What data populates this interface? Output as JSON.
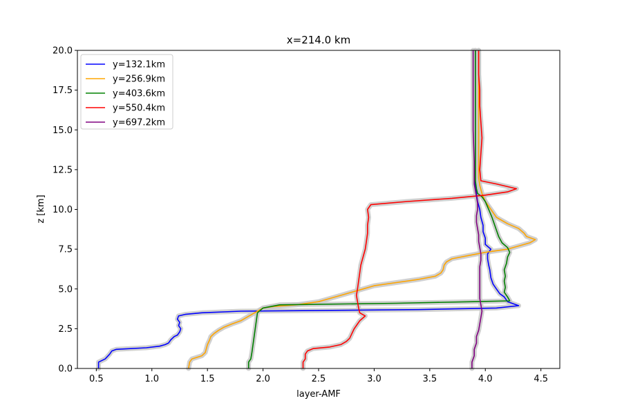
{
  "chart_data": {
    "type": "line",
    "title": "x=214.0 km",
    "xlabel": "layer-AMF",
    "ylabel": "z [km]",
    "xlim": [
      0.33,
      4.67
    ],
    "ylim": [
      0,
      20
    ],
    "xticks": [
      0.5,
      1.0,
      1.5,
      2.0,
      2.5,
      3.0,
      3.5,
      4.0,
      4.5
    ],
    "yticks": [
      0.0,
      2.5,
      5.0,
      7.5,
      10.0,
      12.5,
      15.0,
      17.5,
      20.0
    ],
    "xtick_labels": [
      "0.5",
      "1.0",
      "1.5",
      "2.0",
      "2.5",
      "3.0",
      "3.5",
      "4.0",
      "4.5"
    ],
    "ytick_labels": [
      "0.0",
      "2.5",
      "5.0",
      "7.5",
      "10.0",
      "12.5",
      "15.0",
      "17.5",
      "20.0"
    ],
    "grid": false,
    "legend_position": "top-left",
    "uncertainty_color": "#c8c8c8",
    "series": [
      {
        "name": "y=132.1km",
        "color": "#0000ff",
        "points": [
          [
            0.52,
            0
          ],
          [
            0.52,
            0.4
          ],
          [
            0.58,
            0.6
          ],
          [
            0.62,
            0.9
          ],
          [
            0.64,
            1.1
          ],
          [
            0.68,
            1.2
          ],
          [
            0.95,
            1.3
          ],
          [
            1.07,
            1.4
          ],
          [
            1.12,
            1.5
          ],
          [
            1.15,
            1.6
          ],
          [
            1.17,
            1.8
          ],
          [
            1.2,
            2.0
          ],
          [
            1.23,
            2.1
          ],
          [
            1.25,
            2.3
          ],
          [
            1.26,
            2.5
          ],
          [
            1.24,
            2.7
          ],
          [
            1.25,
            2.9
          ],
          [
            1.23,
            3.1
          ],
          [
            1.24,
            3.3
          ],
          [
            1.3,
            3.4
          ],
          [
            1.45,
            3.5
          ],
          [
            1.8,
            3.6
          ],
          [
            3.4,
            3.7
          ],
          [
            4.1,
            3.8
          ],
          [
            4.3,
            3.95
          ],
          [
            4.2,
            4.2
          ],
          [
            4.17,
            4.5
          ],
          [
            4.13,
            4.7
          ],
          [
            4.1,
            5.0
          ],
          [
            4.07,
            5.3
          ],
          [
            4.05,
            5.7
          ],
          [
            4.04,
            6.2
          ],
          [
            4.03,
            6.5
          ],
          [
            4.02,
            6.9
          ],
          [
            4.02,
            7.2
          ],
          [
            4.05,
            7.5
          ],
          [
            4.0,
            7.8
          ],
          [
            4.0,
            8.2
          ],
          [
            3.98,
            8.6
          ],
          [
            3.98,
            9.0
          ],
          [
            3.96,
            9.5
          ],
          [
            3.95,
            10.0
          ],
          [
            3.93,
            10.5
          ],
          [
            3.92,
            11.0
          ],
          [
            3.91,
            11.5
          ],
          [
            3.91,
            12.0
          ],
          [
            3.91,
            13.0
          ],
          [
            3.91,
            15.0
          ],
          [
            3.91,
            17.5
          ],
          [
            3.91,
            20.0
          ]
        ]
      },
      {
        "name": "y=256.9km",
        "color": "#ffa500",
        "points": [
          [
            1.33,
            0
          ],
          [
            1.34,
            0.4
          ],
          [
            1.36,
            0.6
          ],
          [
            1.45,
            0.8
          ],
          [
            1.48,
            1.0
          ],
          [
            1.5,
            1.5
          ],
          [
            1.52,
            1.8
          ],
          [
            1.53,
            2.0
          ],
          [
            1.56,
            2.2
          ],
          [
            1.6,
            2.4
          ],
          [
            1.65,
            2.6
          ],
          [
            1.72,
            2.8
          ],
          [
            1.8,
            3.0
          ],
          [
            1.85,
            3.2
          ],
          [
            1.9,
            3.4
          ],
          [
            1.95,
            3.6
          ],
          [
            2.0,
            3.8
          ],
          [
            2.1,
            3.9
          ],
          [
            2.3,
            4.0
          ],
          [
            2.5,
            4.2
          ],
          [
            2.6,
            4.4
          ],
          [
            2.7,
            4.6
          ],
          [
            2.8,
            4.8
          ],
          [
            2.9,
            5.0
          ],
          [
            3.0,
            5.2
          ],
          [
            3.2,
            5.4
          ],
          [
            3.4,
            5.6
          ],
          [
            3.55,
            5.8
          ],
          [
            3.6,
            6.0
          ],
          [
            3.62,
            6.2
          ],
          [
            3.63,
            6.5
          ],
          [
            3.65,
            6.7
          ],
          [
            3.7,
            6.9
          ],
          [
            3.85,
            7.1
          ],
          [
            4.0,
            7.3
          ],
          [
            4.2,
            7.5
          ],
          [
            4.3,
            7.7
          ],
          [
            4.4,
            7.9
          ],
          [
            4.45,
            8.1
          ],
          [
            4.37,
            8.3
          ],
          [
            4.35,
            8.5
          ],
          [
            4.3,
            8.8
          ],
          [
            4.2,
            9.1
          ],
          [
            4.1,
            9.5
          ],
          [
            4.05,
            10.0
          ],
          [
            4.0,
            10.5
          ],
          [
            3.97,
            11.0
          ],
          [
            3.95,
            11.5
          ],
          [
            3.94,
            12.0
          ],
          [
            3.94,
            12.5
          ],
          [
            3.94,
            13.0
          ],
          [
            3.94,
            15.0
          ],
          [
            3.94,
            17.5
          ],
          [
            3.94,
            20.0
          ]
        ]
      },
      {
        "name": "y=403.6km",
        "color": "#008000",
        "points": [
          [
            1.87,
            0
          ],
          [
            1.87,
            0.4
          ],
          [
            1.89,
            0.6
          ],
          [
            1.9,
            1.0
          ],
          [
            1.91,
            1.5
          ],
          [
            1.92,
            2.0
          ],
          [
            1.93,
            2.5
          ],
          [
            1.94,
            3.0
          ],
          [
            1.95,
            3.5
          ],
          [
            2.0,
            3.8
          ],
          [
            2.15,
            4.0
          ],
          [
            3.2,
            4.1
          ],
          [
            3.9,
            4.2
          ],
          [
            4.22,
            4.25
          ],
          [
            4.2,
            4.5
          ],
          [
            4.17,
            4.8
          ],
          [
            4.18,
            5.1
          ],
          [
            4.17,
            5.5
          ],
          [
            4.18,
            5.8
          ],
          [
            4.17,
            6.2
          ],
          [
            4.19,
            6.6
          ],
          [
            4.2,
            7.0
          ],
          [
            4.22,
            7.3
          ],
          [
            4.2,
            7.6
          ],
          [
            4.15,
            7.9
          ],
          [
            4.12,
            8.3
          ],
          [
            4.1,
            8.7
          ],
          [
            4.08,
            9.1
          ],
          [
            4.06,
            9.5
          ],
          [
            4.03,
            10.0
          ],
          [
            4.0,
            10.5
          ],
          [
            3.97,
            10.8
          ],
          [
            3.93,
            11.0
          ],
          [
            3.92,
            11.3
          ],
          [
            3.91,
            11.8
          ],
          [
            3.91,
            12.5
          ],
          [
            3.91,
            15.0
          ],
          [
            3.91,
            17.5
          ],
          [
            3.91,
            20.0
          ]
        ]
      },
      {
        "name": "y=550.4km",
        "color": "#ff0000",
        "points": [
          [
            2.36,
            0
          ],
          [
            2.36,
            0.4
          ],
          [
            2.38,
            0.6
          ],
          [
            2.38,
            0.9
          ],
          [
            2.4,
            1.1
          ],
          [
            2.45,
            1.25
          ],
          [
            2.6,
            1.35
          ],
          [
            2.7,
            1.5
          ],
          [
            2.75,
            1.7
          ],
          [
            2.78,
            1.9
          ],
          [
            2.8,
            2.2
          ],
          [
            2.82,
            2.5
          ],
          [
            2.85,
            2.8
          ],
          [
            2.87,
            3.0
          ],
          [
            2.92,
            3.3
          ],
          [
            2.87,
            3.5
          ],
          [
            2.86,
            3.8
          ],
          [
            2.85,
            4.2
          ],
          [
            2.84,
            4.6
          ],
          [
            2.85,
            5.0
          ],
          [
            2.86,
            5.5
          ],
          [
            2.87,
            6.0
          ],
          [
            2.88,
            6.5
          ],
          [
            2.9,
            7.0
          ],
          [
            2.92,
            7.5
          ],
          [
            2.93,
            8.0
          ],
          [
            2.94,
            8.5
          ],
          [
            2.94,
            9.0
          ],
          [
            2.95,
            9.5
          ],
          [
            2.94,
            10.0
          ],
          [
            2.97,
            10.3
          ],
          [
            3.3,
            10.5
          ],
          [
            3.7,
            10.7
          ],
          [
            4.0,
            10.9
          ],
          [
            4.2,
            11.1
          ],
          [
            4.28,
            11.3
          ],
          [
            4.1,
            11.6
          ],
          [
            3.96,
            11.8
          ],
          [
            3.95,
            12.5
          ],
          [
            3.96,
            13.5
          ],
          [
            3.97,
            14.5
          ],
          [
            3.96,
            15.5
          ],
          [
            3.95,
            16.5
          ],
          [
            3.95,
            17.5
          ],
          [
            3.94,
            18.5
          ],
          [
            3.94,
            20.0
          ]
        ]
      },
      {
        "name": "y=697.2km",
        "color": "#800080",
        "points": [
          [
            3.88,
            0
          ],
          [
            3.88,
            0.4
          ],
          [
            3.9,
            0.8
          ],
          [
            3.9,
            1.2
          ],
          [
            3.92,
            1.6
          ],
          [
            3.92,
            2.0
          ],
          [
            3.94,
            2.4
          ],
          [
            3.95,
            2.8
          ],
          [
            3.96,
            3.2
          ],
          [
            3.97,
            3.6
          ],
          [
            3.96,
            4.0
          ],
          [
            3.95,
            4.4
          ],
          [
            3.95,
            4.8
          ],
          [
            3.95,
            5.2
          ],
          [
            3.95,
            5.6
          ],
          [
            3.95,
            6.0
          ],
          [
            3.95,
            6.4
          ],
          [
            3.96,
            6.8
          ],
          [
            3.96,
            7.2
          ],
          [
            3.95,
            7.6
          ],
          [
            3.94,
            8.0
          ],
          [
            3.94,
            8.4
          ],
          [
            3.93,
            8.8
          ],
          [
            3.92,
            9.2
          ],
          [
            3.92,
            9.6
          ],
          [
            3.93,
            10.0
          ],
          [
            3.93,
            10.4
          ],
          [
            3.92,
            10.8
          ],
          [
            3.91,
            11.2
          ],
          [
            3.9,
            11.6
          ],
          [
            3.9,
            12.0
          ],
          [
            3.9,
            13.0
          ],
          [
            3.89,
            15.0
          ],
          [
            3.89,
            17.5
          ],
          [
            3.89,
            20.0
          ]
        ]
      }
    ]
  }
}
